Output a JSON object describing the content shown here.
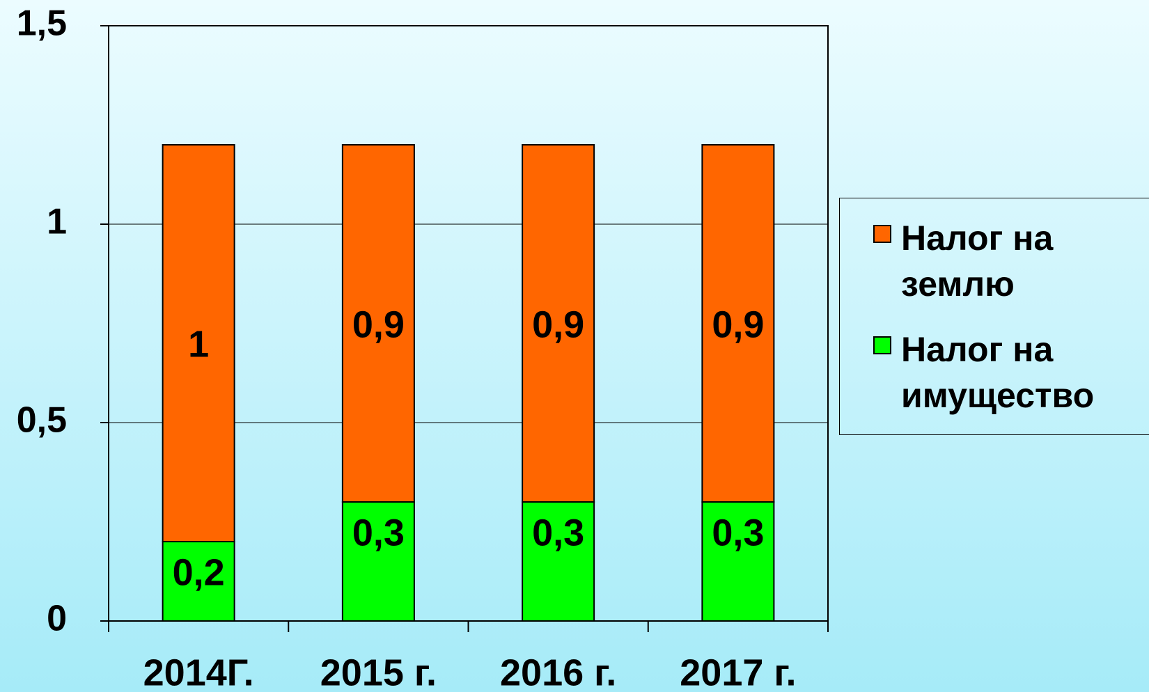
{
  "chart_data": {
    "type": "stacked_bar",
    "categories": [
      "2014Г.",
      "2015 г.",
      "2016 г.",
      "2017 г."
    ],
    "series": [
      {
        "name": "Налог на имущество",
        "color": "#00ff00",
        "values": [
          0.2,
          0.3,
          0.3,
          0.3
        ],
        "value_labels": [
          "0,2",
          "0,3",
          "0,3",
          "0,3"
        ]
      },
      {
        "name": "Налог на землю",
        "color": "#ff6600",
        "values": [
          1,
          0.9,
          0.9,
          0.9
        ],
        "value_labels": [
          "1",
          "0,9",
          "0,9",
          "0,9"
        ]
      }
    ],
    "ylim": [
      0,
      1.5
    ],
    "yticks": [
      0,
      {
        "value": 0.5,
        "label": "0,5"
      },
      1,
      {
        "value": 1.5,
        "label": "1,5"
      }
    ],
    "grid": true,
    "legend": "right"
  }
}
